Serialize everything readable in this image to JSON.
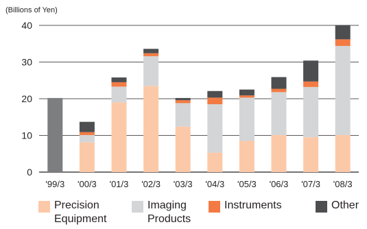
{
  "chart_data": {
    "type": "bar",
    "stacked": true,
    "unit_label": "(Billions of Yen)",
    "categories": [
      "'99/3",
      "'00/3",
      "'01/3",
      "'02/3",
      "'03/3",
      "'04/3",
      "'05/3",
      "'06/3",
      "'07/3",
      "'08/3"
    ],
    "ylim": [
      0,
      40
    ],
    "yticks": [
      0,
      10,
      20,
      30,
      40
    ],
    "grid": true,
    "legend_position": "bottom",
    "total_only": {
      "category": "'99/3",
      "value": 20.2,
      "color": "#7d7e80"
    },
    "series": [
      {
        "name": "Precision\nEquipment",
        "color": "#fcc9a8",
        "values": [
          0,
          8.1,
          19.0,
          23.5,
          12.4,
          5.3,
          8.5,
          10.1,
          9.5,
          10.1
        ]
      },
      {
        "name": "Imaging\nProducts",
        "color": "#d4d5d7",
        "values": [
          0,
          2.0,
          4.3,
          8.1,
          6.4,
          13.2,
          11.8,
          11.7,
          13.7,
          24.3
        ]
      },
      {
        "name": "Instruments",
        "color": "#f37b43",
        "values": [
          0,
          0.8,
          1.2,
          0.8,
          0.8,
          1.8,
          0.6,
          0.9,
          1.5,
          1.8
        ]
      },
      {
        "name": "Other",
        "color": "#4d4e50",
        "values": [
          0,
          2.8,
          1.3,
          1.2,
          0.6,
          1.8,
          1.6,
          3.2,
          5.7,
          3.9
        ]
      }
    ]
  }
}
